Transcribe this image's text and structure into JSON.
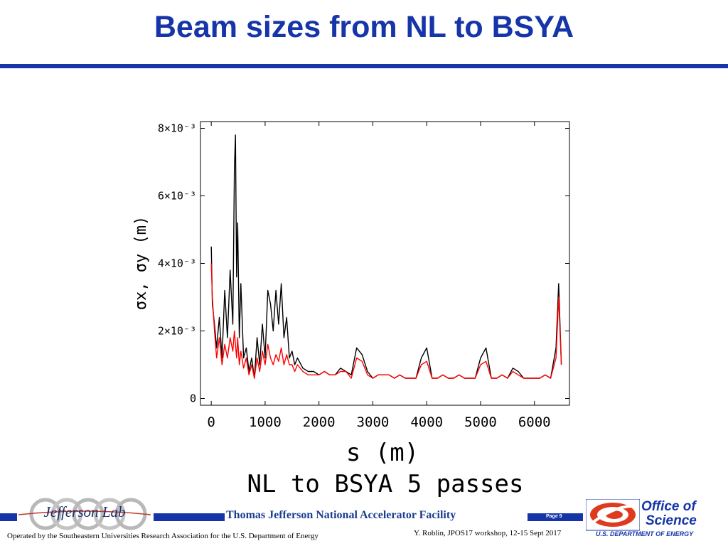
{
  "slide": {
    "title": "Beam sizes from NL to BSYA"
  },
  "footer": {
    "lab_logo_text": "Jefferson Lab",
    "lab_name": "Thomas Jefferson National Accelerator Facility",
    "page": "Page 9",
    "operated_by": "Operated by the Southeastern Universities Research Association for the U.S. Department of  Energy",
    "credit": "Y. Roblin, JPOS17 workshop, 12-15 Sept 2017",
    "office_line1": "Office of",
    "office_line2": "Science",
    "office_dept": "U.S. DEPARTMENT OF ENERGY",
    "brand_blue": "#1535a8",
    "office_red": "#e03a1e"
  },
  "chart_data": {
    "type": "line",
    "xlabel": "s (m)",
    "subtitle": "NL to BSYA 5 passes",
    "ylabel": "σx, σy (m)",
    "xlim": [
      -200,
      6650
    ],
    "ylim": [
      -0.0002,
      0.0082
    ],
    "xticks": [
      0,
      1000,
      2000,
      3000,
      4000,
      5000,
      6000
    ],
    "xtick_labels": [
      "0",
      "1000",
      "2000",
      "3000",
      "4000",
      "5000",
      "6000"
    ],
    "yticks": [
      0,
      0.002,
      0.004,
      0.006,
      0.008
    ],
    "ytick_labels": [
      "0",
      "2×10⁻³",
      "4×10⁻³",
      "6×10⁻³",
      "8×10⁻³"
    ],
    "grid": false,
    "series": [
      {
        "color": "#000000",
        "x": [
          0,
          20,
          60,
          100,
          150,
          200,
          250,
          300,
          350,
          400,
          430,
          450,
          470,
          490,
          520,
          550,
          600,
          650,
          700,
          750,
          800,
          850,
          900,
          950,
          1000,
          1050,
          1100,
          1150,
          1200,
          1250,
          1300,
          1350,
          1400,
          1450,
          1500,
          1550,
          1600,
          1700,
          1800,
          1900,
          2000,
          2100,
          2200,
          2300,
          2400,
          2500,
          2600,
          2700,
          2800,
          2900,
          3000,
          3100,
          3200,
          3300,
          3400,
          3500,
          3600,
          3700,
          3800,
          3900,
          4000,
          4100,
          4200,
          4300,
          4400,
          4500,
          4600,
          4700,
          4800,
          4900,
          5000,
          5100,
          5200,
          5300,
          5400,
          5500,
          5600,
          5700,
          5800,
          5900,
          6000,
          6100,
          6200,
          6300,
          6400,
          6450,
          6500
        ],
        "y": [
          0.0045,
          0.0028,
          0.0022,
          0.0015,
          0.0024,
          0.0012,
          0.0032,
          0.0018,
          0.0038,
          0.0022,
          0.0068,
          0.0078,
          0.0036,
          0.0052,
          0.0018,
          0.0034,
          0.0012,
          0.0015,
          0.0008,
          0.0012,
          0.0006,
          0.0018,
          0.001,
          0.0022,
          0.0012,
          0.0032,
          0.0028,
          0.002,
          0.0032,
          0.0022,
          0.0034,
          0.0018,
          0.0024,
          0.0012,
          0.0014,
          0.001,
          0.0012,
          0.0009,
          0.0008,
          0.0008,
          0.0007,
          0.0008,
          0.0007,
          0.0007,
          0.0009,
          0.0008,
          0.0007,
          0.0015,
          0.0013,
          0.0008,
          0.0006,
          0.0007,
          0.0007,
          0.0007,
          0.0006,
          0.0007,
          0.0006,
          0.0006,
          0.0006,
          0.0012,
          0.0015,
          0.0006,
          0.0006,
          0.0007,
          0.0006,
          0.0006,
          0.0007,
          0.0006,
          0.0006,
          0.0006,
          0.0012,
          0.0015,
          0.0006,
          0.0006,
          0.0007,
          0.0006,
          0.0009,
          0.0008,
          0.0006,
          0.0006,
          0.0006,
          0.0006,
          0.0007,
          0.0006,
          0.0015,
          0.0034,
          0.001
        ]
      },
      {
        "color": "#ff0000",
        "x": [
          0,
          20,
          60,
          100,
          150,
          200,
          250,
          300,
          350,
          400,
          430,
          450,
          470,
          490,
          520,
          550,
          600,
          650,
          700,
          750,
          800,
          850,
          900,
          950,
          1000,
          1050,
          1100,
          1150,
          1200,
          1250,
          1300,
          1350,
          1400,
          1450,
          1500,
          1550,
          1600,
          1700,
          1800,
          1900,
          2000,
          2100,
          2200,
          2300,
          2400,
          2500,
          2600,
          2700,
          2800,
          2900,
          3000,
          3100,
          3200,
          3300,
          3400,
          3500,
          3600,
          3700,
          3800,
          3900,
          4000,
          4100,
          4200,
          4300,
          4400,
          4500,
          4600,
          4700,
          4800,
          4900,
          5000,
          5100,
          5200,
          5300,
          5400,
          5500,
          5600,
          5700,
          5800,
          5900,
          6000,
          6100,
          6200,
          6300,
          6400,
          6450,
          6500
        ],
        "y": [
          0.004,
          0.003,
          0.002,
          0.0012,
          0.0018,
          0.001,
          0.0016,
          0.0012,
          0.0018,
          0.0014,
          0.002,
          0.0016,
          0.0012,
          0.0018,
          0.001,
          0.0014,
          0.0009,
          0.0012,
          0.0007,
          0.001,
          0.0006,
          0.0012,
          0.0008,
          0.0014,
          0.001,
          0.0016,
          0.0012,
          0.001,
          0.0013,
          0.0011,
          0.0015,
          0.001,
          0.0013,
          0.001,
          0.001,
          0.0008,
          0.001,
          0.0008,
          0.0007,
          0.0007,
          0.0007,
          0.0008,
          0.0007,
          0.0007,
          0.0008,
          0.0008,
          0.0006,
          0.0012,
          0.0011,
          0.0007,
          0.0006,
          0.0007,
          0.0007,
          0.0007,
          0.0006,
          0.0007,
          0.0006,
          0.0006,
          0.0006,
          0.001,
          0.0011,
          0.0006,
          0.0006,
          0.0007,
          0.0006,
          0.0006,
          0.0007,
          0.0006,
          0.0006,
          0.0006,
          0.001,
          0.0011,
          0.0006,
          0.0006,
          0.0007,
          0.0006,
          0.0008,
          0.0007,
          0.0006,
          0.0006,
          0.0006,
          0.0006,
          0.0007,
          0.0006,
          0.0012,
          0.003,
          0.001
        ]
      }
    ]
  }
}
